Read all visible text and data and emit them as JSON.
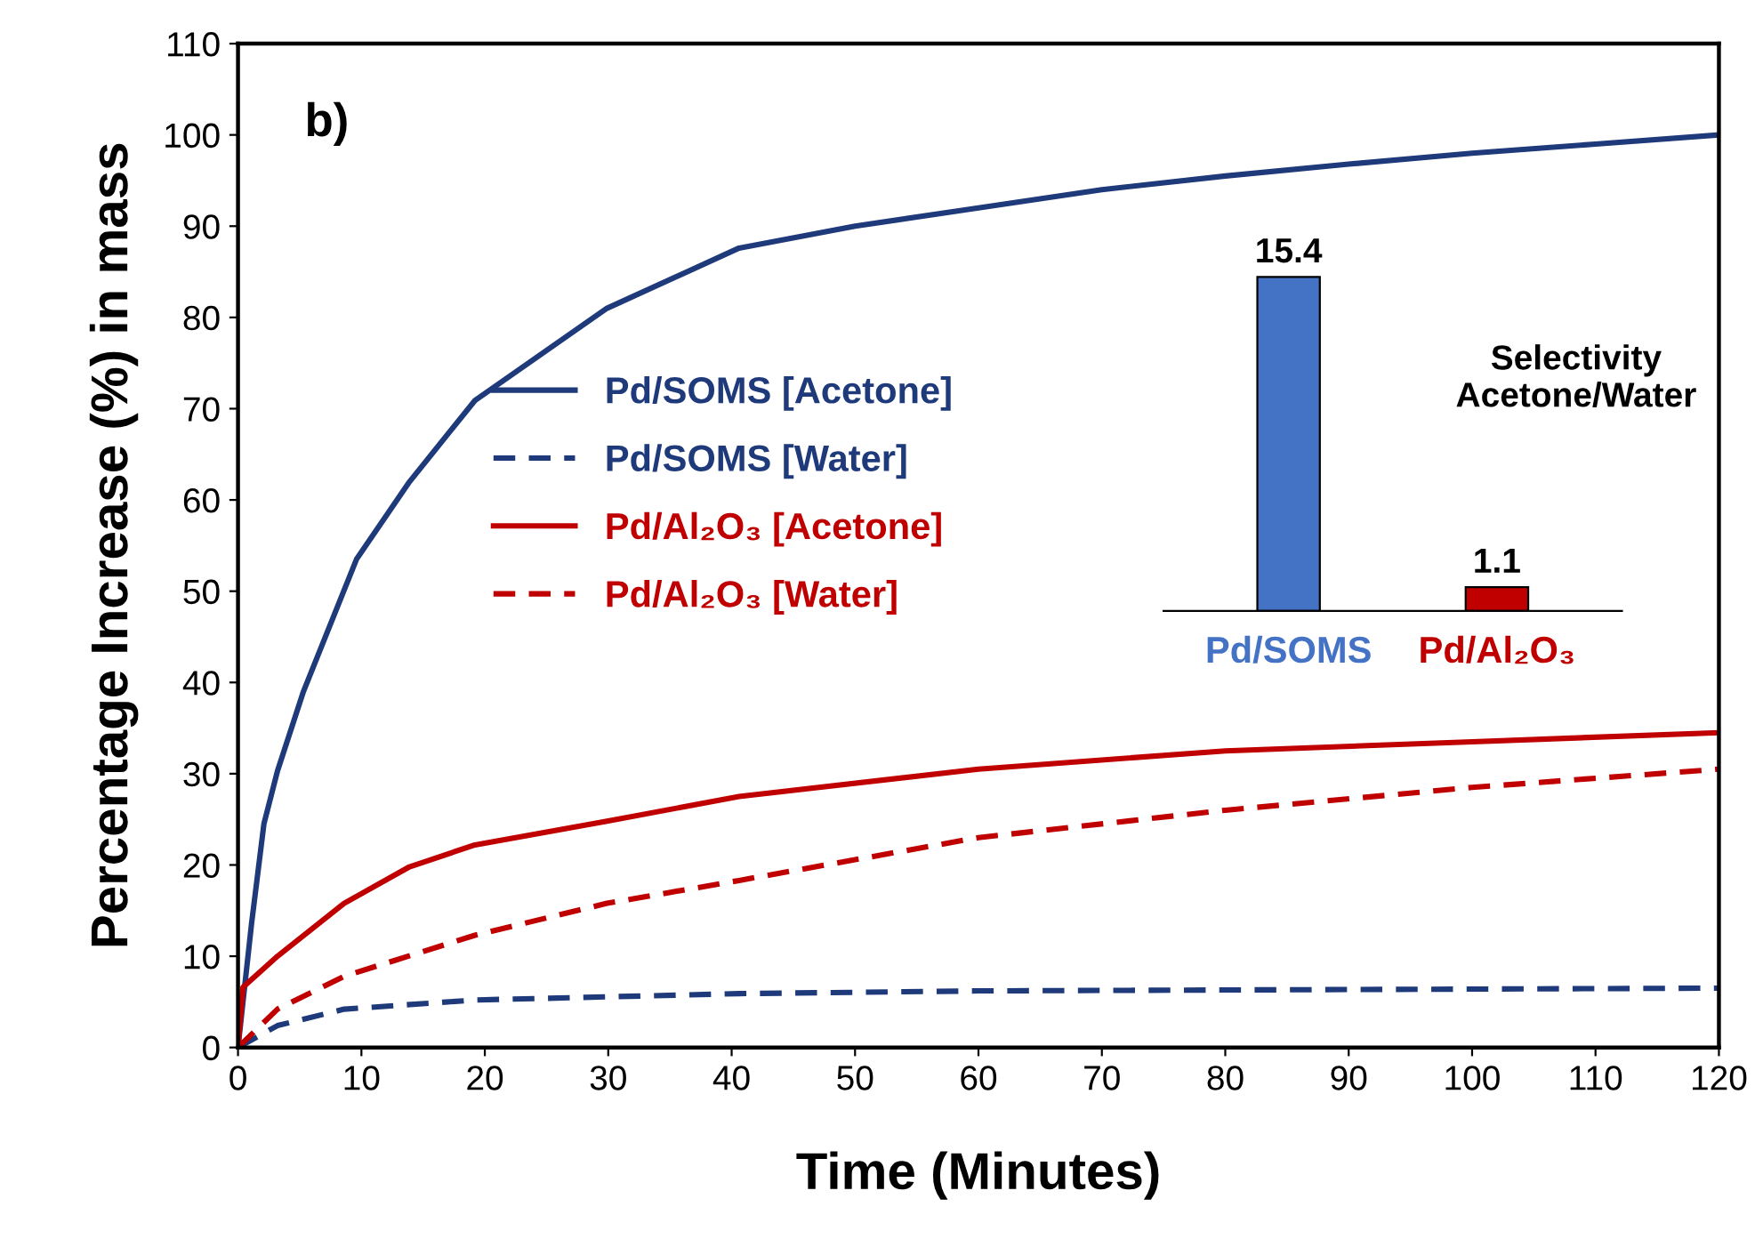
{
  "chart_data": [
    {
      "type": "line",
      "xlabel": "Time (Minutes)",
      "ylabel": "Percentage Increase (%) in mass",
      "annotations": [
        "b)"
      ],
      "xlim": [
        0,
        120
      ],
      "ylim": [
        0,
        110
      ],
      "xticks": [
        0,
        10,
        20,
        30,
        40,
        50,
        60,
        70,
        80,
        90,
        100,
        110,
        120
      ],
      "yticks": [
        0,
        10,
        20,
        30,
        40,
        50,
        60,
        70,
        80,
        90,
        100,
        110
      ],
      "grid": false,
      "legend": "left",
      "series": [
        {
          "name": "Pd/SOMS [Acetone]",
          "color": "#1f3a7a",
          "line_style": "solid",
          "x": [
            0,
            1.1,
            2.1,
            3.2,
            5.3,
            9.6,
            13.9,
            19.2,
            29.9,
            40.6,
            50,
            60,
            70,
            80,
            90,
            100,
            110,
            120
          ],
          "values": [
            0,
            13.6,
            24.5,
            30.3,
            39,
            53.5,
            62,
            70.9,
            81,
            87.6,
            90,
            92,
            94,
            95.5,
            96.8,
            98,
            99,
            100
          ]
        },
        {
          "name": "Pd/SOMS [Water]",
          "color": "#1f3a7a",
          "line_style": "dashed",
          "x": [
            0,
            3.2,
            8.6,
            19.2,
            40.6,
            60,
            80,
            100,
            120
          ],
          "values": [
            0,
            2.4,
            4.2,
            5.2,
            5.9,
            6.2,
            6.3,
            6.4,
            6.5
          ]
        },
        {
          "name": "Pd/Al₂O₃ [Acetone]",
          "color": "#c00000",
          "line_style": "solid",
          "x": [
            0,
            0.4,
            3.2,
            8.6,
            13.9,
            19.2,
            29.9,
            40.6,
            60,
            80,
            100,
            120
          ],
          "values": [
            0,
            6.6,
            10,
            15.8,
            19.8,
            22.2,
            24.8,
            27.5,
            30.5,
            32.5,
            33.5,
            34.5
          ]
        },
        {
          "name": "Pd/Al₂O₃ [Water]",
          "color": "#c00000",
          "line_style": "dashed",
          "x": [
            0,
            3.2,
            8.6,
            19.2,
            29.9,
            40.6,
            60,
            80,
            100,
            120
          ],
          "values": [
            0,
            4.2,
            7.8,
            12.3,
            15.8,
            18.3,
            23,
            26,
            28.5,
            30.5
          ]
        }
      ]
    },
    {
      "type": "bar",
      "title": "Selectivity\nAcetone/Water",
      "categories": [
        "Pd/SOMS",
        "Pd/Al₂O₃"
      ],
      "values": [
        15.4,
        1.1
      ],
      "colors": [
        "#4472c4",
        "#c00000"
      ],
      "data_labels": true
    }
  ]
}
